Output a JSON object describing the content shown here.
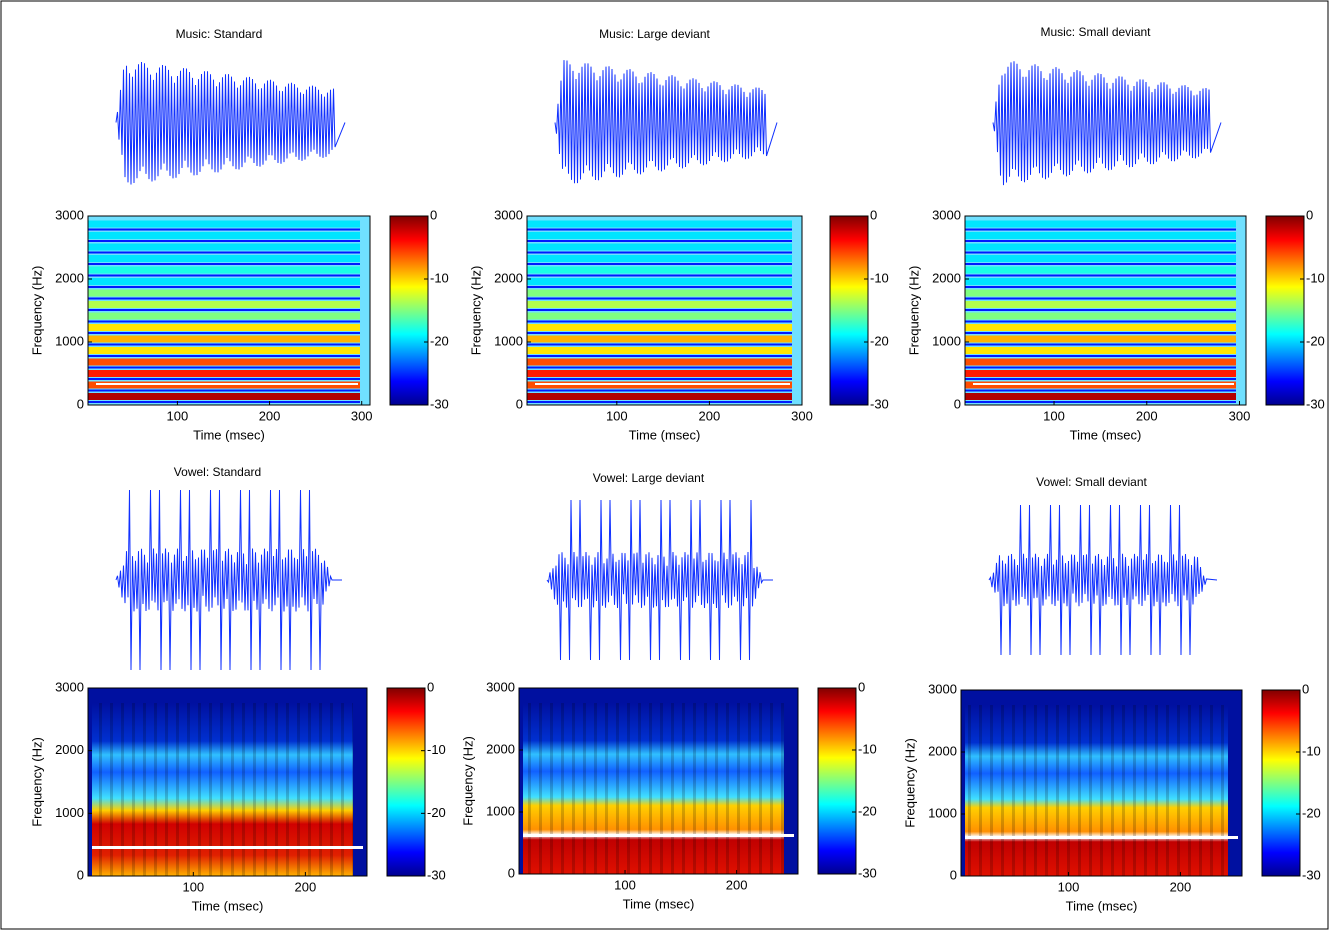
{
  "chart_data": [
    {
      "type": "spectrogram",
      "title": "Music: Standard",
      "xlabel": "Time (msec)",
      "ylabel": "Frequency (Hz)",
      "xlim": [
        3,
        309
      ],
      "xticks": [
        100,
        200,
        300
      ],
      "ylim": [
        0,
        3000
      ],
      "yticks": [
        0,
        1000,
        2000,
        3000
      ],
      "clim": [
        -30,
        0
      ],
      "cticks": [
        0,
        -10,
        -20,
        -30
      ]
    },
    {
      "type": "spectrogram",
      "title": "Music: Large deviant",
      "xlabel": "Time (msec)",
      "ylabel": "Frequency (Hz)",
      "xlim": [
        3,
        300
      ],
      "xticks": [
        100,
        200,
        300
      ],
      "ylim": [
        0,
        3000
      ],
      "yticks": [
        0,
        1000,
        2000,
        3000
      ],
      "clim": [
        -30,
        0
      ],
      "cticks": [
        0,
        -10,
        -20,
        -30
      ]
    },
    {
      "type": "spectrogram",
      "title": "Music: Small deviant",
      "xlabel": "Time (msec)",
      "ylabel": "Frequency (Hz)",
      "xlim": [
        4,
        307
      ],
      "xticks": [
        100,
        200,
        300
      ],
      "ylim": [
        0,
        3000
      ],
      "yticks": [
        0,
        1000,
        2000,
        3000
      ],
      "clim": [
        -30,
        0
      ],
      "cticks": [
        0,
        -10,
        -20,
        -30
      ]
    },
    {
      "type": "spectrogram",
      "title": "Vowel: Standard",
      "xlabel": "Time (msec)",
      "ylabel": "Frequency (Hz)",
      "xlim": [
        6,
        255
      ],
      "xticks": [
        100,
        200
      ],
      "ylim": [
        0,
        3000
      ],
      "yticks": [
        0,
        1000,
        2000,
        3000
      ],
      "clim": [
        -30,
        0
      ],
      "cticks": [
        0,
        -10,
        -20,
        -30
      ]
    },
    {
      "type": "spectrogram",
      "title": "Vowel: Large deviant",
      "xlabel": "Time (msec)",
      "ylabel": "Frequency (Hz)",
      "xlim": [
        5,
        255
      ],
      "xticks": [
        100,
        200
      ],
      "ylim": [
        0,
        3000
      ],
      "yticks": [
        0,
        1000,
        2000,
        3000
      ],
      "clim": [
        -30,
        0
      ],
      "cticks": [
        0,
        -10,
        -20,
        -30
      ]
    },
    {
      "type": "spectrogram",
      "title": "Vowel: Small deviant",
      "xlabel": "Time (msec)",
      "ylabel": "Frequency (Hz)",
      "xlim": [
        4,
        255
      ],
      "xticks": [
        100,
        200
      ],
      "ylim": [
        0,
        3000
      ],
      "yticks": [
        0,
        1000,
        2000,
        3000
      ],
      "clim": [
        -30,
        0
      ],
      "cticks": [
        0,
        -10,
        -20,
        -30
      ]
    }
  ]
}
